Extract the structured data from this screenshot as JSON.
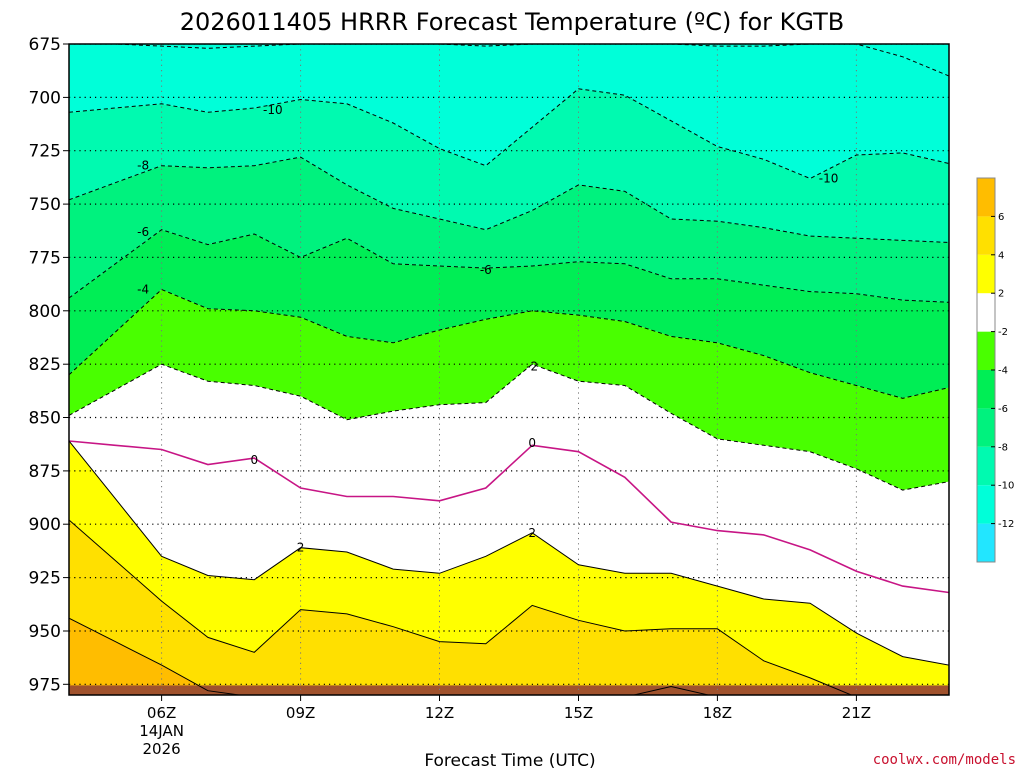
{
  "chart_data": {
    "type": "contour",
    "title": "2026011405 HRRR Forecast Temperature (ºC) for KGTB",
    "xlabel": "Forecast Time (UTC)",
    "x_hours": [
      5,
      6,
      7,
      8,
      9,
      10,
      11,
      12,
      13,
      14,
      15,
      16,
      17,
      18,
      19,
      20,
      21,
      22,
      23
    ],
    "x_ticks": [
      {
        "hour": 6,
        "label": "06Z",
        "sub1": "14JAN",
        "sub2": "2026"
      },
      {
        "hour": 9,
        "label": "09Z"
      },
      {
        "hour": 12,
        "label": "12Z"
      },
      {
        "hour": 15,
        "label": "15Z"
      },
      {
        "hour": 18,
        "label": "18Z"
      },
      {
        "hour": 21,
        "label": "21Z"
      }
    ],
    "xlim": [
      4.0,
      23.0
    ],
    "ylim": [
      980,
      675
    ],
    "y_ticks": [
      675,
      700,
      725,
      750,
      775,
      800,
      825,
      850,
      875,
      900,
      925,
      950,
      975
    ],
    "colorbar": {
      "levels": [
        -14,
        -12,
        -10,
        -8,
        -6,
        -4,
        -2,
        2,
        4,
        6,
        8
      ],
      "colors": [
        "#22e6ff",
        "#00ffd9",
        "#00fab0",
        "#00f27e",
        "#00ee55",
        "#49ff00",
        "#ffffff",
        "#ffff00",
        "#ffe000",
        "#ffbd00"
      ],
      "tick_labels": [
        "-12",
        "-10",
        "-8",
        "-6",
        "-4",
        "-2",
        "2",
        "4",
        "6"
      ]
    },
    "contours": [
      {
        "level": -12,
        "p": [
          675,
          676,
          677,
          676,
          675,
          675,
          675,
          675,
          676,
          675,
          675,
          675,
          675,
          676,
          676,
          675,
          675,
          681,
          690
        ]
      },
      {
        "level": -10,
        "p": [
          705,
          703,
          707,
          705,
          701,
          703,
          712,
          724,
          732,
          714,
          696,
          699,
          711,
          723,
          729,
          738,
          727,
          726,
          731
        ]
      },
      {
        "level": -8,
        "p": [
          740,
          732,
          733,
          732,
          728,
          741,
          752,
          757,
          762,
          753,
          741,
          744,
          757,
          758,
          761,
          765,
          766,
          767,
          768
        ]
      },
      {
        "level": -6,
        "p": [
          778,
          762,
          769,
          764,
          775,
          766,
          778,
          779,
          780,
          779,
          777,
          778,
          785,
          785,
          788,
          791,
          792,
          795,
          796
        ]
      },
      {
        "level": -4,
        "p": [
          810,
          790,
          799,
          800,
          803,
          812,
          815,
          809,
          804,
          800,
          802,
          805,
          812,
          815,
          821,
          829,
          835,
          841,
          836
        ]
      },
      {
        "level": -2,
        "p": [
          837,
          825,
          833,
          835,
          840,
          851,
          847,
          844,
          843,
          825,
          833,
          835,
          848,
          860,
          863,
          866,
          874,
          884,
          880
        ]
      },
      {
        "level": 0,
        "p": [
          863,
          865,
          872,
          869,
          883,
          887,
          887,
          889,
          883,
          863,
          866,
          878,
          899,
          903,
          905,
          912,
          922,
          929,
          932
        ]
      },
      {
        "level": 2,
        "p": [
          888,
          915,
          924,
          926,
          911,
          913,
          921,
          923,
          915,
          904,
          919,
          923,
          923,
          929,
          935,
          937,
          951,
          962,
          966
        ]
      },
      {
        "level": 4,
        "p": [
          917,
          936,
          953,
          960,
          940,
          942,
          948,
          955,
          956,
          938,
          945,
          950,
          949,
          949,
          964,
          972,
          981,
          981,
          981
        ]
      },
      {
        "level": 6,
        "p": [
          955,
          966,
          978,
          981,
          981,
          981,
          981,
          981,
          981,
          981,
          981,
          981,
          976,
          981,
          981,
          981,
          981,
          981,
          981
        ]
      }
    ],
    "contour_labels": [
      {
        "text": "-10",
        "hour": 8.4,
        "p": 706
      },
      {
        "text": "-10",
        "hour": 20.4,
        "p": 738
      },
      {
        "text": "-8",
        "hour": 5.6,
        "p": 732
      },
      {
        "text": "-6",
        "hour": 5.6,
        "p": 763
      },
      {
        "text": "-6",
        "hour": 13.0,
        "p": 781
      },
      {
        "text": "-4",
        "hour": 5.6,
        "p": 790
      },
      {
        "text": "-2",
        "hour": 14.0,
        "p": 826
      },
      {
        "text": "0",
        "hour": 8.0,
        "p": 870
      },
      {
        "text": "0",
        "hour": 14.0,
        "p": 862
      },
      {
        "text": "2",
        "hour": 9.0,
        "p": 911
      },
      {
        "text": "2",
        "hour": 14.0,
        "p": 904
      }
    ],
    "ground_p": 975,
    "ground_color": "#a0522d",
    "grid": true
  },
  "credit": "coolwx.com/models"
}
